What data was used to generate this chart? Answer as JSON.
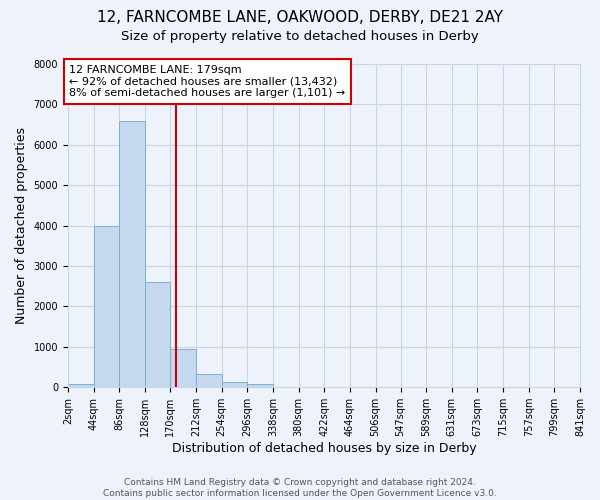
{
  "title": "12, FARNCOMBE LANE, OAKWOOD, DERBY, DE21 2AY",
  "subtitle": "Size of property relative to detached houses in Derby",
  "xlabel": "Distribution of detached houses by size in Derby",
  "ylabel": "Number of detached properties",
  "bar_edges": [
    2,
    44,
    86,
    128,
    170,
    212,
    254,
    296,
    338,
    380,
    422,
    464,
    506,
    547,
    589,
    631,
    673,
    715,
    757,
    799,
    841
  ],
  "bar_heights": [
    70,
    4000,
    6600,
    2600,
    950,
    320,
    120,
    70,
    0,
    0,
    0,
    0,
    0,
    0,
    0,
    0,
    0,
    0,
    0,
    0
  ],
  "bar_color": "#c5d8ee",
  "bar_edge_color": "#7bafd4",
  "vline_x": 179,
  "vline_color": "#cc0000",
  "annotation_title": "12 FARNCOMBE LANE: 179sqm",
  "annotation_line1": "← 92% of detached houses are smaller (13,432)",
  "annotation_line2": "8% of semi-detached houses are larger (1,101) →",
  "annotation_box_edge_color": "#cc0000",
  "annotation_box_face_color": "#ffffff",
  "ylim": [
    0,
    8000
  ],
  "xlim_left": 2,
  "xlim_right": 841,
  "tick_labels": [
    "2sqm",
    "44sqm",
    "86sqm",
    "128sqm",
    "170sqm",
    "212sqm",
    "254sqm",
    "296sqm",
    "338sqm",
    "380sqm",
    "422sqm",
    "464sqm",
    "506sqm",
    "547sqm",
    "589sqm",
    "631sqm",
    "673sqm",
    "715sqm",
    "757sqm",
    "799sqm",
    "841sqm"
  ],
  "footer_line1": "Contains HM Land Registry data © Crown copyright and database right 2024.",
  "footer_line2": "Contains public sector information licensed under the Open Government Licence v3.0.",
  "bg_color": "#eef2fa",
  "plot_bg_color": "#eef2fa",
  "grid_color": "#c8d4e8",
  "title_fontsize": 11,
  "subtitle_fontsize": 9.5,
  "axis_label_fontsize": 9,
  "tick_fontsize": 7,
  "annotation_fontsize": 8,
  "footer_fontsize": 6.5
}
